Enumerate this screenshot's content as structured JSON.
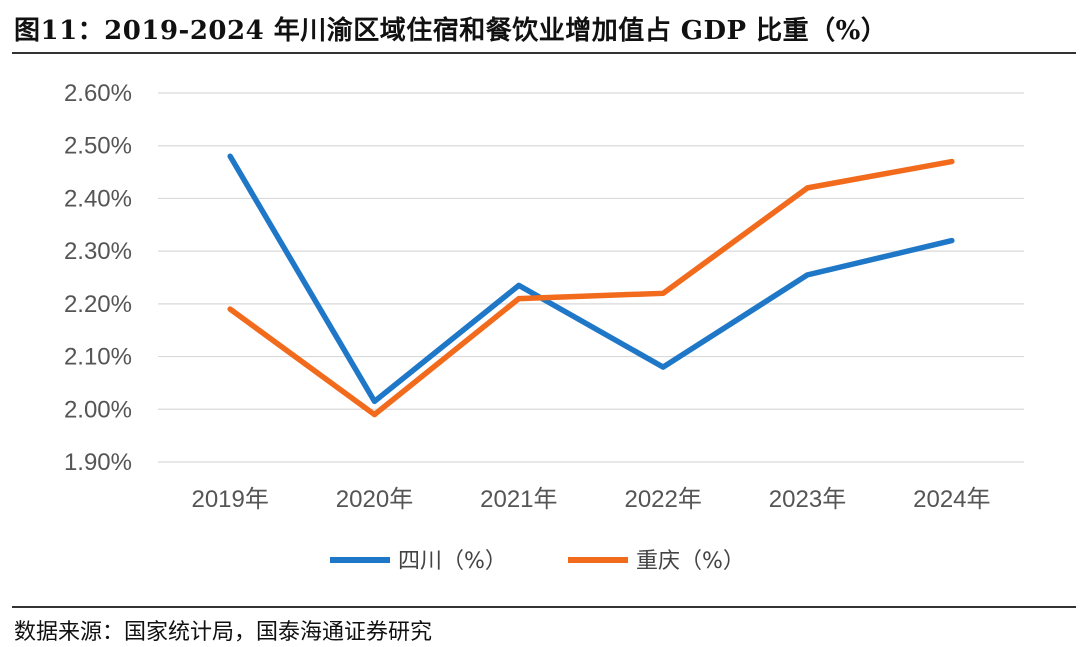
{
  "header": {
    "title": "图11：2019-2024 年川渝区域住宿和餐饮业增加值占 GDP 比重（%）"
  },
  "footer": {
    "source": "数据来源：国家统计局，国泰海通证券研究"
  },
  "chart_data": {
    "type": "line",
    "title": "2019-2024 年川渝区域住宿和餐饮业增加值占 GDP 比重（%）",
    "categories": [
      "2019年",
      "2020年",
      "2021年",
      "2022年",
      "2023年",
      "2024年"
    ],
    "series": [
      {
        "name": "四川（%）",
        "color": "#1f77c8",
        "values": [
          2.48,
          2.015,
          2.235,
          2.08,
          2.255,
          2.32
        ]
      },
      {
        "name": "重庆（%）",
        "color": "#f26b1d",
        "values": [
          2.19,
          1.99,
          2.21,
          2.22,
          2.42,
          2.47
        ]
      }
    ],
    "yticks": [
      "1.90%",
      "2.00%",
      "2.10%",
      "2.20%",
      "2.30%",
      "2.40%",
      "2.50%",
      "2.60%"
    ],
    "ylim": [
      1.9,
      2.6
    ],
    "xlabel": "",
    "ylabel": "",
    "grid": true,
    "legend": "bottom"
  }
}
